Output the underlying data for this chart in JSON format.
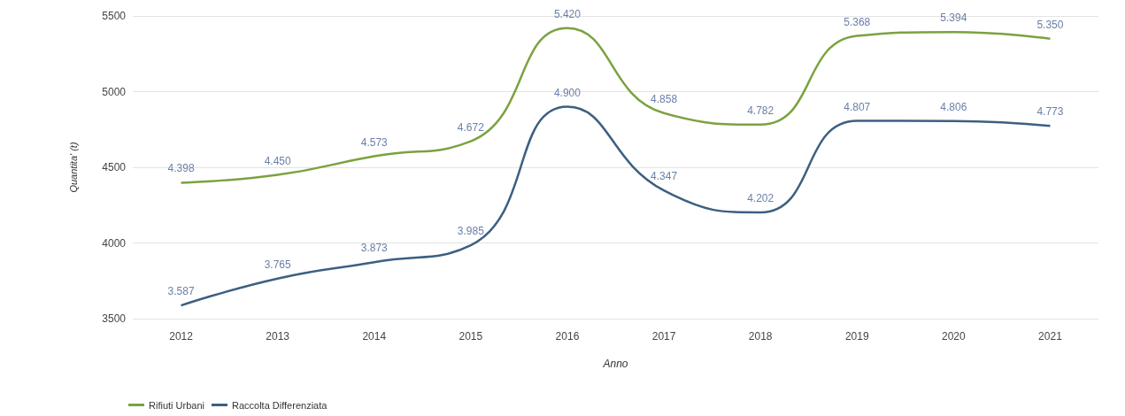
{
  "chart_data": {
    "type": "line",
    "xlabel": "Anno",
    "ylabel": "Quantita' (t)",
    "categories": [
      "2012",
      "2013",
      "2014",
      "2015",
      "2016",
      "2017",
      "2018",
      "2019",
      "2020",
      "2021"
    ],
    "series": [
      {
        "name": "Rifiuti Urbani",
        "color": "#7ba23f",
        "values": [
          4398,
          4450,
          4573,
          4672,
          5420,
          4858,
          4782,
          5368,
          5394,
          5350
        ],
        "value_labels": [
          "4.398",
          "4.450",
          "4.573",
          "4.672",
          "5.420",
          "4.858",
          "4.782",
          "5.368",
          "5.394",
          "5.350"
        ]
      },
      {
        "name": "Raccolta Differenziata",
        "color": "#3d5f82",
        "values": [
          3587,
          3765,
          3873,
          3985,
          4900,
          4347,
          4202,
          4807,
          4806,
          4773
        ],
        "value_labels": [
          "3.587",
          "3.765",
          "3.873",
          "3.985",
          "4.900",
          "4.347",
          "4.202",
          "4.807",
          "4.806",
          "4.773"
        ]
      }
    ],
    "ylim": [
      3500,
      5500
    ],
    "yticks": [
      3500,
      4000,
      4500,
      5000,
      5500
    ],
    "grid": "y",
    "legend": "bottom left",
    "marker": "none",
    "line_style": "solid"
  }
}
